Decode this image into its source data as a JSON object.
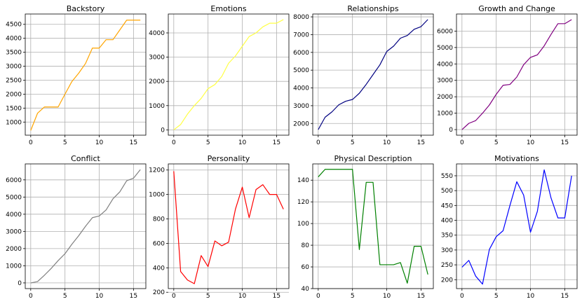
{
  "chart_data": [
    {
      "type": "line",
      "title": "Backstory",
      "color": "#FFA500",
      "x": [
        0,
        1,
        2,
        3,
        4,
        5,
        6,
        7,
        8,
        9,
        10,
        11,
        12,
        13,
        14,
        15,
        16
      ],
      "values": [
        700,
        1320,
        1540,
        1540,
        1540,
        2000,
        2450,
        2750,
        3100,
        3650,
        3650,
        3950,
        3950,
        4300,
        4650,
        4650,
        4650
      ],
      "xticks": [
        "0",
        "5",
        "10",
        "15"
      ],
      "yticks": [
        "1000",
        "1500",
        "2000",
        "2500",
        "3000",
        "3500",
        "4000",
        "4500"
      ],
      "xlim": [
        -0.8,
        16.8
      ],
      "ylim": [
        530,
        4870
      ],
      "grid": true
    },
    {
      "type": "line",
      "title": "Emotions",
      "color": "#FFFF44",
      "x": [
        0,
        1,
        2,
        3,
        4,
        5,
        6,
        7,
        8,
        9,
        10,
        11,
        12,
        13,
        14,
        15,
        16
      ],
      "values": [
        0,
        220,
        650,
        1000,
        1300,
        1700,
        1870,
        2200,
        2750,
        3050,
        3450,
        3850,
        4000,
        4250,
        4400,
        4400,
        4550
      ],
      "xticks": [
        "0",
        "5",
        "10",
        "15"
      ],
      "yticks": [
        "0",
        "1000",
        "2000",
        "3000",
        "4000"
      ],
      "xlim": [
        -0.8,
        16.8
      ],
      "ylim": [
        -220,
        4780
      ],
      "grid": true
    },
    {
      "type": "line",
      "title": "Relationships",
      "color": "#000080",
      "x": [
        0,
        1,
        2,
        3,
        4,
        5,
        6,
        7,
        8,
        9,
        10,
        11,
        12,
        13,
        14,
        15,
        16
      ],
      "values": [
        1650,
        2350,
        2650,
        3050,
        3250,
        3350,
        3700,
        4200,
        4750,
        5300,
        6050,
        6350,
        6800,
        6950,
        7300,
        7450,
        7850
      ],
      "xticks": [
        "0",
        "5",
        "10",
        "15"
      ],
      "yticks": [
        "2000",
        "3000",
        "4000",
        "5000",
        "6000",
        "7000",
        "8000"
      ],
      "xlim": [
        -0.8,
        16.8
      ],
      "ylim": [
        1340,
        8160
      ],
      "grid": true
    },
    {
      "type": "line",
      "title": "Growth and Change",
      "color": "#800080",
      "x": [
        0,
        1,
        2,
        3,
        4,
        5,
        6,
        7,
        8,
        9,
        10,
        11,
        12,
        13,
        14,
        15,
        16
      ],
      "values": [
        0,
        380,
        550,
        1000,
        1500,
        2150,
        2700,
        2750,
        3200,
        3950,
        4400,
        4550,
        5100,
        5800,
        6450,
        6450,
        6700
      ],
      "xticks": [
        "0",
        "5",
        "10",
        "15"
      ],
      "yticks": [
        "0",
        "1000",
        "2000",
        "3000",
        "4000",
        "5000",
        "6000"
      ],
      "xlim": [
        -0.8,
        16.8
      ],
      "ylim": [
        -340,
        7040
      ],
      "grid": true
    },
    {
      "type": "line",
      "title": "Conflict",
      "color": "#808080",
      "x": [
        0,
        1,
        2,
        3,
        4,
        5,
        6,
        7,
        8,
        9,
        10,
        11,
        12,
        13,
        14,
        15,
        16
      ],
      "values": [
        0,
        80,
        450,
        850,
        1300,
        1700,
        2250,
        2750,
        3300,
        3800,
        3900,
        4250,
        4900,
        5300,
        5950,
        6100,
        6600
      ],
      "xticks": [
        "0",
        "5",
        "10",
        "15"
      ],
      "yticks": [
        "0",
        "1000",
        "2000",
        "3000",
        "4000",
        "5000",
        "6000"
      ],
      "xlim": [
        -0.8,
        16.8
      ],
      "ylim": [
        -330,
        6930
      ],
      "grid": true
    },
    {
      "type": "line",
      "title": "Personality",
      "color": "#FF0000",
      "x": [
        0,
        1,
        2,
        3,
        4,
        5,
        6,
        7,
        8,
        9,
        10,
        11,
        12,
        13,
        14,
        15,
        16
      ],
      "values": [
        1190,
        370,
        300,
        270,
        500,
        410,
        620,
        580,
        610,
        880,
        1060,
        810,
        1040,
        1080,
        1000,
        1000,
        880
      ],
      "xticks": [
        "0",
        "5",
        "10",
        "15"
      ],
      "yticks": [
        "200",
        "400",
        "600",
        "800",
        "1000",
        "1200"
      ],
      "xlim": [
        -0.8,
        16.8
      ],
      "ylim": [
        230,
        1250
      ],
      "grid": true
    },
    {
      "type": "line",
      "title": "Physical Description",
      "color": "#008000",
      "x": [
        0,
        1,
        2,
        3,
        4,
        5,
        6,
        7,
        8,
        9,
        10,
        11,
        12,
        13,
        14,
        15,
        16
      ],
      "values": [
        143,
        150,
        150,
        150,
        150,
        150,
        76,
        138,
        138,
        62,
        62,
        62,
        64,
        45,
        79,
        79,
        53
      ],
      "xticks": [
        "0",
        "5",
        "10",
        "15"
      ],
      "yticks": [
        "40",
        "60",
        "80",
        "100",
        "120",
        "140"
      ],
      "xlim": [
        -0.8,
        16.8
      ],
      "ylim": [
        40,
        155
      ],
      "grid": true
    },
    {
      "type": "line",
      "title": "Motivations",
      "color": "#0000FF",
      "x": [
        0,
        1,
        2,
        3,
        4,
        5,
        6,
        7,
        8,
        9,
        10,
        11,
        12,
        13,
        14,
        15,
        16
      ],
      "values": [
        242,
        265,
        212,
        185,
        302,
        345,
        365,
        450,
        530,
        485,
        360,
        430,
        570,
        475,
        408,
        408,
        550
      ],
      "xticks": [
        "0",
        "5",
        "10",
        "15"
      ],
      "yticks": [
        "200",
        "250",
        "300",
        "350",
        "400",
        "450",
        "500",
        "550"
      ],
      "xlim": [
        -0.8,
        16.8
      ],
      "ylim": [
        170,
        590
      ],
      "grid": true
    }
  ]
}
